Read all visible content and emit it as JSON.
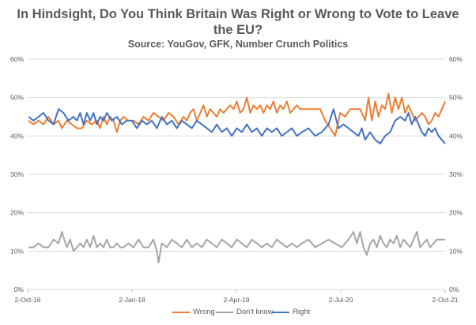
{
  "chart_data": {
    "type": "line",
    "title_line1": "In Hindsight, Do You Think Britain Was Right or Wrong to Vote to Leave",
    "title_line2": "the EU?",
    "subtitle": "Source: YouGov, GFK, Number Crunch Politics",
    "xlabel": "",
    "ylabel": "",
    "ylim": [
      0,
      60
    ],
    "yticks": [
      "0%",
      "10%",
      "20%",
      "30%",
      "40%",
      "50%",
      "60%"
    ],
    "xticks": [
      "2-Oct-16",
      "2-Jan-18",
      "2-Apr-19",
      "2-Jul-20",
      "2-Oct-21"
    ],
    "grid": true,
    "legend_position": "bottom",
    "series": [
      {
        "name": "Wrong",
        "color": "#ED7D31",
        "values": [
          [
            2016.76,
            44
          ],
          [
            2016.82,
            43
          ],
          [
            2016.88,
            44
          ],
          [
            2016.94,
            43
          ],
          [
            2017.0,
            45
          ],
          [
            2017.06,
            43
          ],
          [
            2017.12,
            44
          ],
          [
            2017.16,
            42
          ],
          [
            2017.22,
            44
          ],
          [
            2017.28,
            43
          ],
          [
            2017.34,
            42
          ],
          [
            2017.4,
            42
          ],
          [
            2017.46,
            44
          ],
          [
            2017.52,
            43
          ],
          [
            2017.58,
            44
          ],
          [
            2017.62,
            42
          ],
          [
            2017.66,
            45
          ],
          [
            2017.7,
            43
          ],
          [
            2017.74,
            45
          ],
          [
            2017.78,
            44
          ],
          [
            2017.82,
            41
          ],
          [
            2017.86,
            44
          ],
          [
            2017.9,
            45
          ],
          [
            2017.96,
            44
          ],
          [
            2018.02,
            44
          ],
          [
            2018.08,
            43
          ],
          [
            2018.14,
            45
          ],
          [
            2018.2,
            44
          ],
          [
            2018.26,
            46
          ],
          [
            2018.32,
            45
          ],
          [
            2018.38,
            44
          ],
          [
            2018.44,
            46
          ],
          [
            2018.5,
            45
          ],
          [
            2018.56,
            43
          ],
          [
            2018.62,
            45
          ],
          [
            2018.66,
            44
          ],
          [
            2018.7,
            46
          ],
          [
            2018.74,
            47
          ],
          [
            2018.78,
            44
          ],
          [
            2018.82,
            46
          ],
          [
            2018.86,
            48
          ],
          [
            2018.9,
            45
          ],
          [
            2018.94,
            47
          ],
          [
            2018.98,
            46
          ],
          [
            2019.02,
            45
          ],
          [
            2019.06,
            47
          ],
          [
            2019.1,
            46
          ],
          [
            2019.14,
            47
          ],
          [
            2019.18,
            48
          ],
          [
            2019.22,
            47
          ],
          [
            2019.26,
            49
          ],
          [
            2019.3,
            46
          ],
          [
            2019.34,
            47
          ],
          [
            2019.38,
            50
          ],
          [
            2019.42,
            46
          ],
          [
            2019.46,
            48
          ],
          [
            2019.5,
            47
          ],
          [
            2019.54,
            48
          ],
          [
            2019.58,
            46
          ],
          [
            2019.62,
            48
          ],
          [
            2019.66,
            47
          ],
          [
            2019.7,
            49
          ],
          [
            2019.74,
            46
          ],
          [
            2019.78,
            48
          ],
          [
            2019.82,
            47
          ],
          [
            2019.86,
            49
          ],
          [
            2019.9,
            46
          ],
          [
            2019.94,
            47
          ],
          [
            2019.98,
            48
          ],
          [
            2020.02,
            47
          ],
          [
            2020.1,
            47
          ],
          [
            2020.18,
            47
          ],
          [
            2020.26,
            47
          ],
          [
            2020.32,
            44
          ],
          [
            2020.38,
            42
          ],
          [
            2020.44,
            40
          ],
          [
            2020.5,
            46
          ],
          [
            2020.56,
            45
          ],
          [
            2020.62,
            47
          ],
          [
            2020.68,
            47
          ],
          [
            2020.74,
            47
          ],
          [
            2020.8,
            44
          ],
          [
            2020.84,
            50
          ],
          [
            2020.88,
            44
          ],
          [
            2020.92,
            49
          ],
          [
            2020.96,
            45
          ],
          [
            2021.0,
            48
          ],
          [
            2021.04,
            47
          ],
          [
            2021.08,
            51
          ],
          [
            2021.12,
            46
          ],
          [
            2021.16,
            50
          ],
          [
            2021.2,
            47
          ],
          [
            2021.24,
            50
          ],
          [
            2021.28,
            46
          ],
          [
            2021.32,
            48
          ],
          [
            2021.36,
            46
          ],
          [
            2021.4,
            44
          ],
          [
            2021.44,
            45
          ],
          [
            2021.48,
            46
          ],
          [
            2021.52,
            45
          ],
          [
            2021.56,
            43
          ],
          [
            2021.6,
            44
          ],
          [
            2021.64,
            46
          ],
          [
            2021.68,
            45
          ],
          [
            2021.72,
            47
          ],
          [
            2021.76,
            49
          ]
        ]
      },
      {
        "name": "Don't know",
        "color": "#A5A5A5",
        "values": [
          [
            2016.76,
            11
          ],
          [
            2016.82,
            11
          ],
          [
            2016.88,
            12
          ],
          [
            2016.94,
            11
          ],
          [
            2017.0,
            11
          ],
          [
            2017.06,
            13
          ],
          [
            2017.12,
            12
          ],
          [
            2017.16,
            15
          ],
          [
            2017.22,
            11
          ],
          [
            2017.26,
            13
          ],
          [
            2017.3,
            10
          ],
          [
            2017.34,
            11
          ],
          [
            2017.38,
            12
          ],
          [
            2017.42,
            11
          ],
          [
            2017.46,
            13
          ],
          [
            2017.5,
            11
          ],
          [
            2017.54,
            14
          ],
          [
            2017.58,
            11
          ],
          [
            2017.62,
            12
          ],
          [
            2017.66,
            11
          ],
          [
            2017.7,
            13
          ],
          [
            2017.74,
            11
          ],
          [
            2017.78,
            11
          ],
          [
            2017.82,
            12
          ],
          [
            2017.86,
            11
          ],
          [
            2017.9,
            11
          ],
          [
            2017.96,
            12
          ],
          [
            2018.02,
            11
          ],
          [
            2018.08,
            13
          ],
          [
            2018.14,
            11
          ],
          [
            2018.2,
            11
          ],
          [
            2018.26,
            13
          ],
          [
            2018.3,
            10
          ],
          [
            2018.32,
            7
          ],
          [
            2018.36,
            12
          ],
          [
            2018.42,
            11
          ],
          [
            2018.48,
            13
          ],
          [
            2018.54,
            12
          ],
          [
            2018.6,
            11
          ],
          [
            2018.66,
            13
          ],
          [
            2018.72,
            11
          ],
          [
            2018.78,
            12
          ],
          [
            2018.84,
            11
          ],
          [
            2018.9,
            13
          ],
          [
            2018.96,
            12
          ],
          [
            2019.02,
            11
          ],
          [
            2019.08,
            13
          ],
          [
            2019.14,
            12
          ],
          [
            2019.2,
            11
          ],
          [
            2019.26,
            13
          ],
          [
            2019.32,
            12
          ],
          [
            2019.38,
            11
          ],
          [
            2019.44,
            13
          ],
          [
            2019.5,
            12
          ],
          [
            2019.56,
            11
          ],
          [
            2019.62,
            12
          ],
          [
            2019.68,
            11
          ],
          [
            2019.74,
            13
          ],
          [
            2019.8,
            12
          ],
          [
            2019.86,
            11
          ],
          [
            2019.92,
            12
          ],
          [
            2019.98,
            11
          ],
          [
            2020.04,
            12
          ],
          [
            2020.12,
            13
          ],
          [
            2020.2,
            11
          ],
          [
            2020.28,
            12
          ],
          [
            2020.36,
            13
          ],
          [
            2020.44,
            12
          ],
          [
            2020.52,
            11
          ],
          [
            2020.6,
            13
          ],
          [
            2020.66,
            15
          ],
          [
            2020.7,
            12
          ],
          [
            2020.74,
            15
          ],
          [
            2020.78,
            11
          ],
          [
            2020.82,
            9
          ],
          [
            2020.86,
            12
          ],
          [
            2020.9,
            13
          ],
          [
            2020.94,
            11
          ],
          [
            2020.98,
            14
          ],
          [
            2021.02,
            12
          ],
          [
            2021.06,
            11
          ],
          [
            2021.1,
            13
          ],
          [
            2021.14,
            12
          ],
          [
            2021.18,
            14
          ],
          [
            2021.22,
            11
          ],
          [
            2021.26,
            13
          ],
          [
            2021.3,
            12
          ],
          [
            2021.34,
            11
          ],
          [
            2021.38,
            13
          ],
          [
            2021.42,
            15
          ],
          [
            2021.46,
            11
          ],
          [
            2021.5,
            12
          ],
          [
            2021.54,
            13
          ],
          [
            2021.58,
            11
          ],
          [
            2021.62,
            12
          ],
          [
            2021.66,
            13
          ],
          [
            2021.72,
            13
          ],
          [
            2021.76,
            13
          ]
        ]
      },
      {
        "name": "Right",
        "color": "#4472C4",
        "values": [
          [
            2016.76,
            45
          ],
          [
            2016.82,
            44
          ],
          [
            2016.88,
            45
          ],
          [
            2016.94,
            46
          ],
          [
            2017.0,
            44
          ],
          [
            2017.06,
            43
          ],
          [
            2017.12,
            47
          ],
          [
            2017.18,
            46
          ],
          [
            2017.24,
            44
          ],
          [
            2017.3,
            45
          ],
          [
            2017.34,
            44
          ],
          [
            2017.38,
            46
          ],
          [
            2017.42,
            43
          ],
          [
            2017.46,
            46
          ],
          [
            2017.5,
            44
          ],
          [
            2017.54,
            46
          ],
          [
            2017.58,
            43
          ],
          [
            2017.62,
            45
          ],
          [
            2017.66,
            44
          ],
          [
            2017.7,
            46
          ],
          [
            2017.76,
            44
          ],
          [
            2017.82,
            45
          ],
          [
            2017.88,
            43
          ],
          [
            2017.94,
            44
          ],
          [
            2018.0,
            44
          ],
          [
            2018.06,
            42
          ],
          [
            2018.12,
            44
          ],
          [
            2018.18,
            43
          ],
          [
            2018.24,
            44
          ],
          [
            2018.3,
            42
          ],
          [
            2018.36,
            45
          ],
          [
            2018.42,
            43
          ],
          [
            2018.48,
            44
          ],
          [
            2018.54,
            42
          ],
          [
            2018.6,
            44
          ],
          [
            2018.66,
            43
          ],
          [
            2018.72,
            42
          ],
          [
            2018.78,
            44
          ],
          [
            2018.84,
            43
          ],
          [
            2018.9,
            42
          ],
          [
            2018.96,
            41
          ],
          [
            2019.02,
            43
          ],
          [
            2019.08,
            41
          ],
          [
            2019.14,
            42
          ],
          [
            2019.2,
            40
          ],
          [
            2019.26,
            42
          ],
          [
            2019.32,
            41
          ],
          [
            2019.38,
            43
          ],
          [
            2019.44,
            41
          ],
          [
            2019.5,
            42
          ],
          [
            2019.56,
            40
          ],
          [
            2019.62,
            42
          ],
          [
            2019.68,
            41
          ],
          [
            2019.74,
            42
          ],
          [
            2019.8,
            40
          ],
          [
            2019.86,
            41
          ],
          [
            2019.92,
            42
          ],
          [
            2019.98,
            40
          ],
          [
            2020.04,
            41
          ],
          [
            2020.12,
            42
          ],
          [
            2020.2,
            40
          ],
          [
            2020.28,
            41
          ],
          [
            2020.36,
            43
          ],
          [
            2020.42,
            47
          ],
          [
            2020.48,
            42
          ],
          [
            2020.54,
            43
          ],
          [
            2020.6,
            42
          ],
          [
            2020.66,
            41
          ],
          [
            2020.72,
            40
          ],
          [
            2020.76,
            42
          ],
          [
            2020.8,
            39
          ],
          [
            2020.86,
            41
          ],
          [
            2020.92,
            39
          ],
          [
            2020.98,
            38
          ],
          [
            2021.04,
            40
          ],
          [
            2021.1,
            41
          ],
          [
            2021.16,
            44
          ],
          [
            2021.22,
            45
          ],
          [
            2021.28,
            44
          ],
          [
            2021.32,
            46
          ],
          [
            2021.36,
            43
          ],
          [
            2021.4,
            45
          ],
          [
            2021.44,
            43
          ],
          [
            2021.48,
            41
          ],
          [
            2021.52,
            40
          ],
          [
            2021.56,
            42
          ],
          [
            2021.6,
            41
          ],
          [
            2021.64,
            42
          ],
          [
            2021.68,
            40
          ],
          [
            2021.72,
            39
          ],
          [
            2021.76,
            38
          ]
        ]
      }
    ]
  }
}
